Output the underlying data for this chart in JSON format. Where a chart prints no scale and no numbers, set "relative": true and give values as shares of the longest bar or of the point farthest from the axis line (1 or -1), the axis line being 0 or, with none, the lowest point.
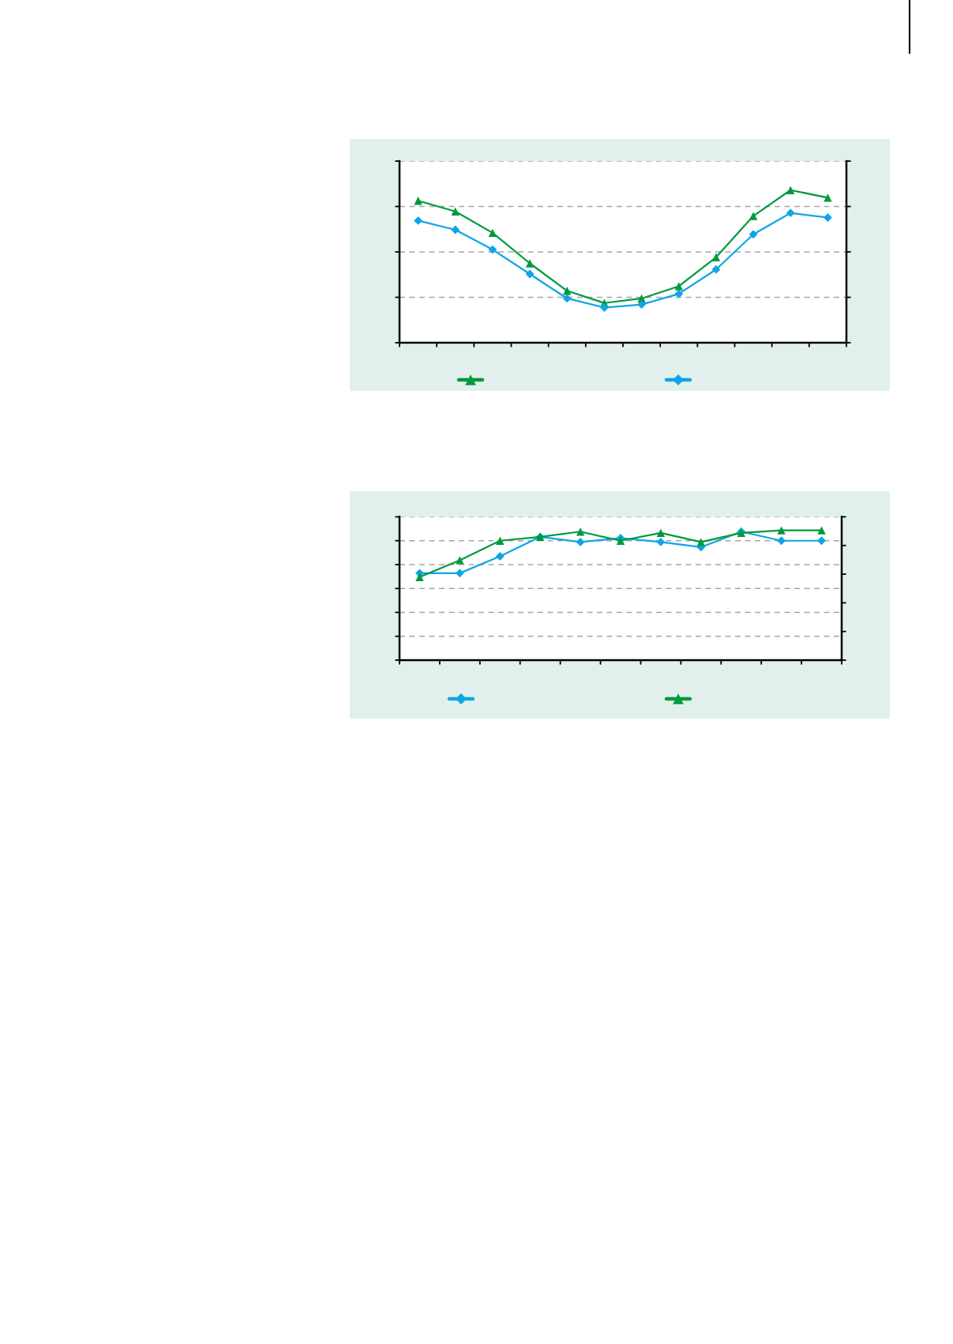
{
  "chart_data": [
    {
      "type": "line",
      "relative": true,
      "categories": [
        null,
        null,
        null,
        null,
        null,
        null,
        null,
        null,
        null,
        null,
        null,
        null
      ],
      "series": [
        {
          "color": "#009a3e",
          "marker": "triangle",
          "values": [
            0.93,
            0.86,
            0.72,
            0.52,
            0.34,
            0.26,
            0.29,
            0.37,
            0.56,
            0.83,
            1,
            0.95
          ]
        },
        {
          "color": "#0ea5e6",
          "marker": "diamond",
          "values": [
            0.8,
            0.74,
            0.61,
            0.45,
            0.29,
            0.23,
            0.25,
            0.32,
            0.48,
            0.71,
            0.85,
            0.82
          ]
        }
      ],
      "line_style": "solid",
      "grid": "y",
      "tick_labels": false
    },
    {
      "type": "line",
      "relative": true,
      "categories": [
        null,
        null,
        null,
        null,
        null,
        null,
        null,
        null,
        null,
        null,
        null
      ],
      "series": [
        {
          "color": "#0ea5e6",
          "marker": "diamond",
          "values": [
            0.67,
            0.67,
            0.8,
            0.95,
            0.91,
            0.94,
            0.91,
            0.87,
            0.99,
            0.92,
            0.92
          ]
        },
        {
          "color": "#009a3e",
          "marker": "triangle",
          "values": [
            0.64,
            0.77,
            0.92,
            0.95,
            0.99,
            0.92,
            0.98,
            0.91,
            0.98,
            1,
            1
          ]
        }
      ],
      "line_style": "solid",
      "grid": "y",
      "tick_labels": false
    }
  ]
}
